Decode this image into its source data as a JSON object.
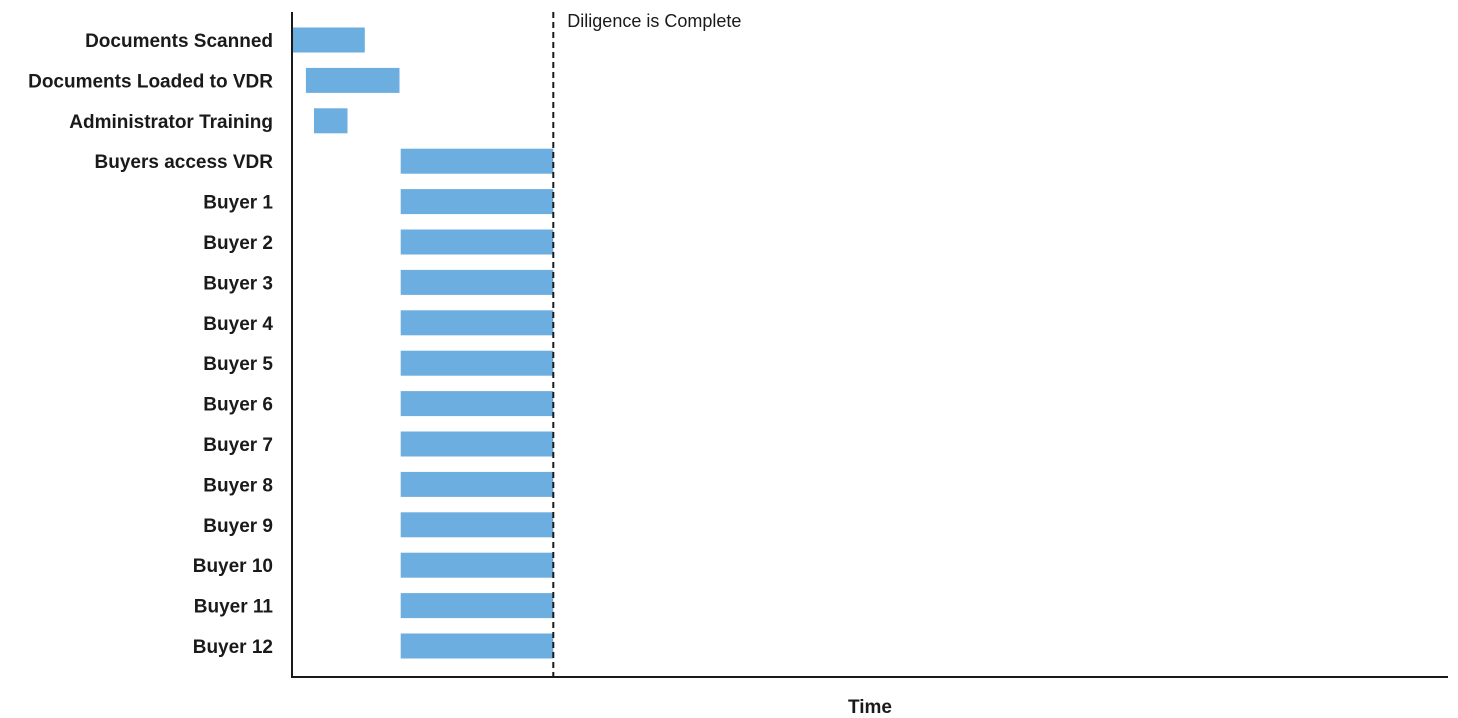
{
  "chart_data": {
    "type": "bar",
    "orientation": "horizontal",
    "subtype": "gantt",
    "title": "",
    "xlabel": "Time",
    "ylabel": "",
    "grid": false,
    "legend": "none",
    "categories": [
      "Documents Scanned",
      "Documents Loaded to VDR",
      "Administrator Training",
      "Buyers access VDR",
      "Buyer 1",
      "Buyer 2",
      "Buyer 3",
      "Buyer 4",
      "Buyer 5",
      "Buyer 6",
      "Buyer 7",
      "Buyer 8",
      "Buyer 9",
      "Buyer 10",
      "Buyer 11",
      "Buyer 12"
    ],
    "xlim": [
      0,
      100
    ],
    "starts": [
      0,
      1.2,
      1.9,
      9.4,
      9.4,
      9.4,
      9.4,
      9.4,
      9.4,
      9.4,
      9.4,
      9.4,
      9.4,
      9.4,
      9.4,
      9.4
    ],
    "ends": [
      6.3,
      9.3,
      4.8,
      22.6,
      22.6,
      22.6,
      22.6,
      22.6,
      22.6,
      22.6,
      22.6,
      22.6,
      22.6,
      22.6,
      22.6,
      22.6
    ],
    "annotations": [
      {
        "text": "Diligence is Complete",
        "x": 22.6,
        "style": "dashed-vertical-line"
      }
    ],
    "colors": {
      "bar": "#6daee0",
      "axis": "#1a1a1a",
      "marker": "#1a1a1a"
    }
  }
}
